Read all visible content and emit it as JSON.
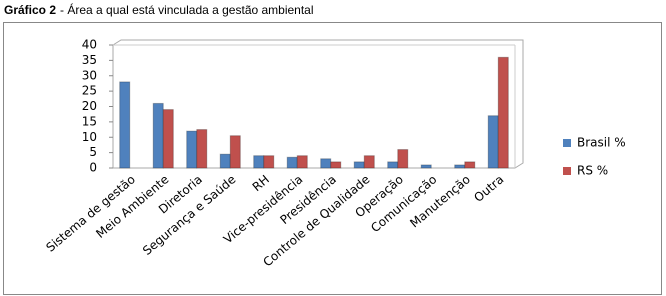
{
  "caption": {
    "label": "Gráfico 2",
    "text": "- Área a qual está vinculada a gestão ambiental"
  },
  "chart_data": {
    "type": "bar",
    "categories": [
      "Sistema de gestão",
      "Meio Ambiente",
      "Diretoria",
      "Segurança e Saúde",
      "RH",
      "Vice-presidência",
      "Presidência",
      "Controle de Qualidade",
      "Operação",
      "Comunicação",
      "Manutenção",
      "Outra"
    ],
    "series": [
      {
        "name": "Brasil %",
        "color": "#4f81bd",
        "values": [
          28,
          21,
          12,
          4.5,
          4,
          3.5,
          3,
          2,
          2,
          1,
          1,
          17
        ]
      },
      {
        "name": "RS %",
        "color": "#c0504d",
        "values": [
          0,
          19,
          12.5,
          10.5,
          4,
          4,
          2,
          4,
          6,
          0,
          2,
          36
        ]
      }
    ],
    "ylim": [
      0,
      40
    ],
    "yticks": [
      0,
      5,
      10,
      15,
      20,
      25,
      30,
      35,
      40
    ],
    "grid": false,
    "legend": "right"
  }
}
